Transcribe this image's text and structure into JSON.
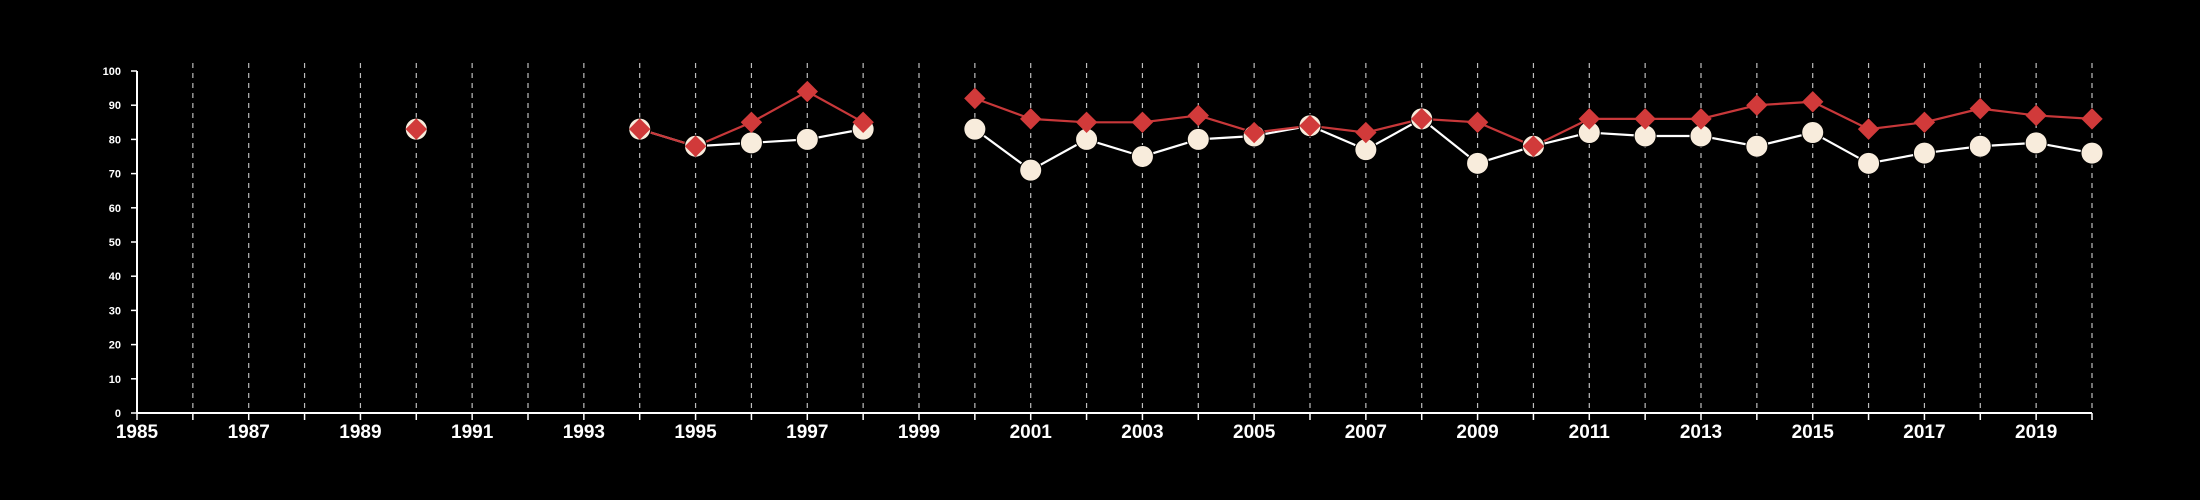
{
  "chart_data": {
    "type": "line",
    "title": "",
    "xlabel": "",
    "ylabel": "",
    "xlim": [
      1985,
      2020
    ],
    "ylim": [
      0,
      100
    ],
    "x_ticks": [
      1985,
      1986,
      1987,
      1988,
      1989,
      1990,
      1991,
      1992,
      1993,
      1994,
      1995,
      1996,
      1997,
      1998,
      1999,
      2000,
      2001,
      2002,
      2003,
      2004,
      2005,
      2006,
      2007,
      2008,
      2009,
      2010,
      2011,
      2012,
      2013,
      2014,
      2015,
      2016,
      2017,
      2018,
      2019,
      2020
    ],
    "x_tick_labels": [
      "1985",
      "1987",
      "1989",
      "1991",
      "1993",
      "1995",
      "1997",
      "1999",
      "2001",
      "2003",
      "2005",
      "2007",
      "2009",
      "2011",
      "2013",
      "2015",
      "2017",
      "2019"
    ],
    "y_ticks": [
      0,
      10,
      20,
      30,
      40,
      50,
      60,
      70,
      80,
      90,
      100
    ],
    "y_tick_labels": [
      "0",
      "10",
      "20",
      "30",
      "40",
      "50",
      "60",
      "70",
      "80",
      "90",
      "100"
    ],
    "grid": "vertical dashed lines at every year",
    "legend": "none",
    "series": [
      {
        "marker": "circle",
        "color": "#f8ecdc",
        "line_color": "#ffffff",
        "segments": [
          [
            [
              1990,
              83
            ]
          ],
          [
            [
              1994,
              83
            ],
            [
              1995,
              78
            ],
            [
              1996,
              79
            ],
            [
              1997,
              80
            ],
            [
              1998,
              83
            ]
          ],
          [
            [
              2000,
              83
            ],
            [
              2001,
              71
            ],
            [
              2002,
              80
            ],
            [
              2003,
              75
            ],
            [
              2004,
              80
            ],
            [
              2005,
              81
            ],
            [
              2006,
              84
            ],
            [
              2007,
              77
            ],
            [
              2008,
              86
            ],
            [
              2009,
              73
            ],
            [
              2010,
              78
            ],
            [
              2011,
              82
            ],
            [
              2012,
              81
            ],
            [
              2013,
              81
            ],
            [
              2014,
              78
            ],
            [
              2015,
              82
            ],
            [
              2016,
              73
            ],
            [
              2017,
              76
            ],
            [
              2018,
              78
            ],
            [
              2019,
              79
            ],
            [
              2020,
              76
            ]
          ]
        ]
      },
      {
        "marker": "diamond",
        "color": "#d13a3a",
        "line_color": "#c8383a",
        "segments": [
          [
            [
              1990,
              83
            ]
          ],
          [
            [
              1994,
              83
            ],
            [
              1995,
              78
            ],
            [
              1996,
              85
            ],
            [
              1997,
              94
            ],
            [
              1998,
              85
            ]
          ],
          [
            [
              2000,
              92
            ],
            [
              2001,
              86
            ],
            [
              2002,
              85
            ],
            [
              2003,
              85
            ],
            [
              2004,
              87
            ],
            [
              2005,
              82
            ],
            [
              2006,
              84
            ],
            [
              2007,
              82
            ],
            [
              2008,
              86
            ],
            [
              2009,
              85
            ],
            [
              2010,
              78
            ],
            [
              2011,
              86
            ],
            [
              2012,
              86
            ],
            [
              2013,
              86
            ],
            [
              2014,
              90
            ],
            [
              2015,
              91
            ],
            [
              2016,
              83
            ],
            [
              2017,
              85
            ],
            [
              2018,
              89
            ],
            [
              2019,
              87
            ],
            [
              2020,
              86
            ]
          ]
        ]
      }
    ]
  }
}
